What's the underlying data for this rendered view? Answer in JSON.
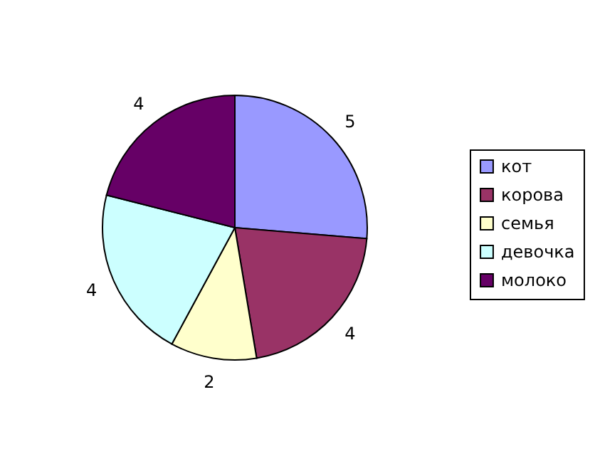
{
  "chart_data": {
    "type": "pie",
    "categories": [
      "кот",
      "корова",
      "семья",
      "девочка",
      "молоко"
    ],
    "values": [
      5,
      4,
      2,
      4,
      4
    ],
    "colors": [
      "#9999ff",
      "#993366",
      "#ffffcc",
      "#ccffff",
      "#660066"
    ],
    "data_labels": true,
    "legend": "right"
  }
}
